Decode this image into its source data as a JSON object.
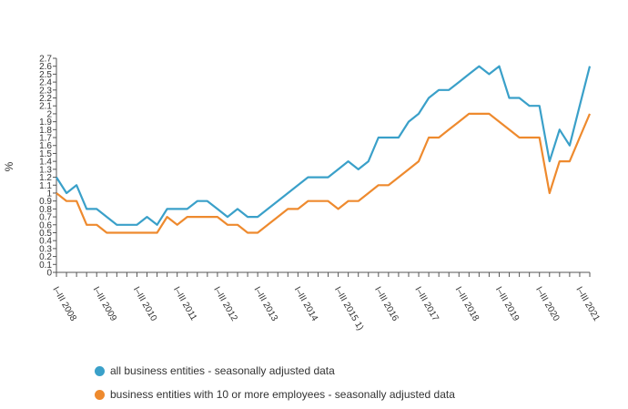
{
  "chart_data": {
    "type": "line",
    "ylabel": "%",
    "ylim": [
      0,
      2.7
    ],
    "yticks": [
      0,
      0.1,
      0.2,
      0.3,
      0.4,
      0.5,
      0.6,
      0.7,
      0.8,
      0.9,
      1,
      1.1,
      1.2,
      1.3,
      1.4,
      1.5,
      1.6,
      1.7,
      1.8,
      1.9,
      2,
      2.1,
      2.2,
      2.3,
      2.4,
      2.5,
      2.6,
      2.7
    ],
    "xtick_labels": [
      "I–III 2008",
      "I–III 2009",
      "I–III 2010",
      "I–III 2011",
      "I–III 2012",
      "I–III 2013",
      "I–III 2014",
      "I–III 2015 1)",
      "I–III 2016",
      "I–III 2017",
      "I–III 2018",
      "I–III 2019",
      "I–III 2020",
      "I–III 2021"
    ],
    "points_per_year": 4,
    "series": [
      {
        "name": "all business entities - seasonally adjusted data",
        "color": "#3aa0c9",
        "values": [
          1.2,
          1.0,
          1.1,
          0.8,
          0.8,
          0.7,
          0.6,
          0.6,
          0.6,
          0.7,
          0.6,
          0.8,
          0.8,
          0.8,
          0.9,
          0.9,
          0.8,
          0.7,
          0.8,
          0.7,
          0.7,
          0.8,
          0.9,
          1.0,
          1.1,
          1.2,
          1.2,
          1.2,
          1.3,
          1.4,
          1.3,
          1.4,
          1.7,
          1.7,
          1.7,
          1.9,
          2.0,
          2.2,
          2.3,
          2.3,
          2.4,
          2.5,
          2.6,
          2.5,
          2.6,
          2.2,
          2.2,
          2.1,
          2.1,
          1.4,
          1.8,
          1.6,
          2.1,
          2.6
        ]
      },
      {
        "name": "business entities with 10 or more employees  - seasonally adjusted data",
        "color": "#ee8a2e",
        "values": [
          1.0,
          0.9,
          0.9,
          0.6,
          0.6,
          0.5,
          0.5,
          0.5,
          0.5,
          0.5,
          0.5,
          0.7,
          0.6,
          0.7,
          0.7,
          0.7,
          0.7,
          0.6,
          0.6,
          0.5,
          0.5,
          0.6,
          0.7,
          0.8,
          0.8,
          0.9,
          0.9,
          0.9,
          0.8,
          0.9,
          0.9,
          1.0,
          1.1,
          1.1,
          1.2,
          1.3,
          1.4,
          1.7,
          1.7,
          1.8,
          1.9,
          2.0,
          2.0,
          2.0,
          1.9,
          1.8,
          1.7,
          1.7,
          1.7,
          1.0,
          1.4,
          1.4,
          1.7,
          2.0
        ]
      }
    ],
    "legend_position": "bottom",
    "grid": false
  }
}
